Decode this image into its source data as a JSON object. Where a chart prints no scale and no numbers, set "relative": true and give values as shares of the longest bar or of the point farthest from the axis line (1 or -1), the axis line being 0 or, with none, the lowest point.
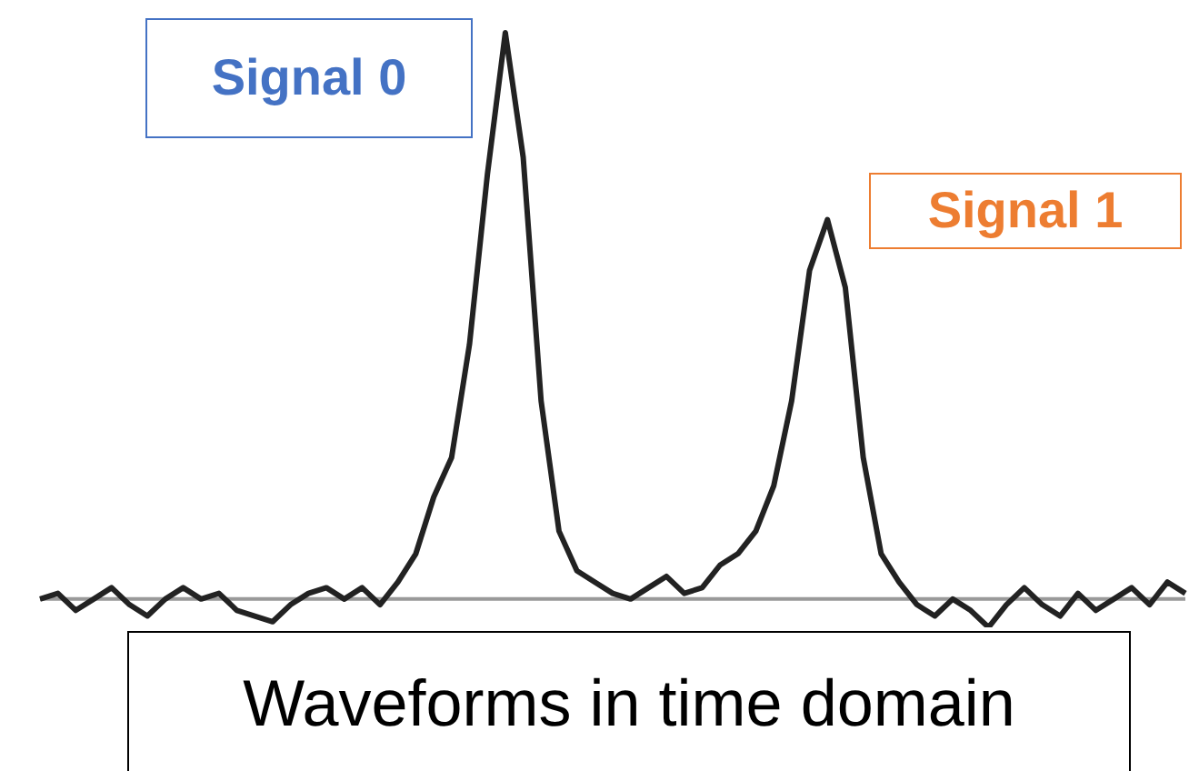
{
  "chart_data": {
    "type": "line",
    "title": "Waveforms in time domain",
    "relative": true,
    "annotations": [
      "Signal 0",
      "Signal 1"
    ],
    "categories": [
      null,
      null,
      null,
      null,
      null,
      null,
      null,
      null,
      null,
      null,
      null,
      null,
      null,
      null,
      null,
      null,
      null,
      null,
      null,
      null,
      null,
      null,
      null,
      null,
      null,
      null,
      null,
      null,
      null,
      null,
      null,
      null,
      null,
      null,
      null,
      null,
      null,
      null,
      null,
      null,
      null,
      null,
      null,
      null,
      null,
      null,
      null,
      null,
      null,
      null,
      null,
      null,
      null,
      null,
      null,
      null,
      null,
      null,
      null,
      null,
      null,
      null,
      null,
      null,
      null
    ],
    "series": [
      {
        "color": "#222222",
        "values": [
          0,
          0.01,
          -0.02,
          0,
          0.02,
          -0.01,
          -0.03,
          0,
          0.02,
          0,
          0.01,
          -0.02,
          -0.03,
          -0.04,
          -0.01,
          0.01,
          0.02,
          0,
          0.02,
          -0.01,
          0.03,
          0.08,
          0.18,
          0.25,
          0.45,
          0.75,
          1,
          0.78,
          0.35,
          0.12,
          0.05,
          0.03,
          0.01,
          0,
          0.02,
          0.04,
          0.01,
          0.02,
          0.06,
          0.08,
          0.12,
          0.2,
          0.35,
          0.58,
          0.67,
          0.55,
          0.25,
          0.08,
          0.03,
          -0.01,
          -0.03,
          0,
          -0.02,
          -0.05,
          -0.01,
          0.02,
          -0.01,
          -0.03,
          0.01,
          -0.02,
          0,
          0.02,
          -0.01,
          0.03,
          0.01
        ]
      }
    ],
    "marker": "none",
    "grid": false,
    "legend": false
  }
}
